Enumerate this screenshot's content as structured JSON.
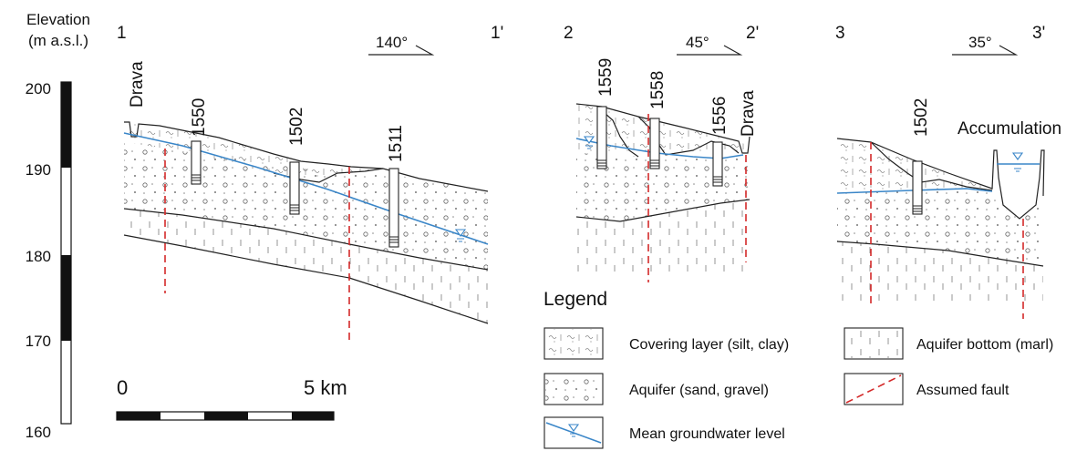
{
  "elevation_axis": {
    "title_line1": "Elevation",
    "title_line2": "(m a.s.l.)",
    "ticks": [
      "200",
      "190",
      "180",
      "170",
      "160"
    ]
  },
  "scale_bar": {
    "start_label": "0",
    "end_label": "5 km"
  },
  "sections": [
    {
      "label_start": "1",
      "label_end": "1'",
      "orientation": "140°",
      "river": "Drava",
      "wells": [
        "1550",
        "1502",
        "1511"
      ]
    },
    {
      "label_start": "2",
      "label_end": "2'",
      "orientation": "45°",
      "river": "Drava",
      "wells": [
        "1559",
        "1558",
        "1556"
      ]
    },
    {
      "label_start": "3",
      "label_end": "3'",
      "orientation": "35°",
      "annotation": "Accumulation",
      "wells": [
        "1502"
      ]
    }
  ],
  "legend": {
    "title": "Legend",
    "items": [
      {
        "key": "cover",
        "label": "Covering layer (silt, clay)"
      },
      {
        "key": "marl",
        "label": "Aquifer bottom (marl)"
      },
      {
        "key": "aquifer",
        "label": "Aquifer (sand, gravel)"
      },
      {
        "key": "fault",
        "label": "Assumed fault"
      },
      {
        "key": "gw",
        "label": "Mean groundwater level"
      }
    ]
  },
  "colors": {
    "groundwater": "#3a86c8",
    "fault": "#d42a2a",
    "lines": "#222222"
  }
}
